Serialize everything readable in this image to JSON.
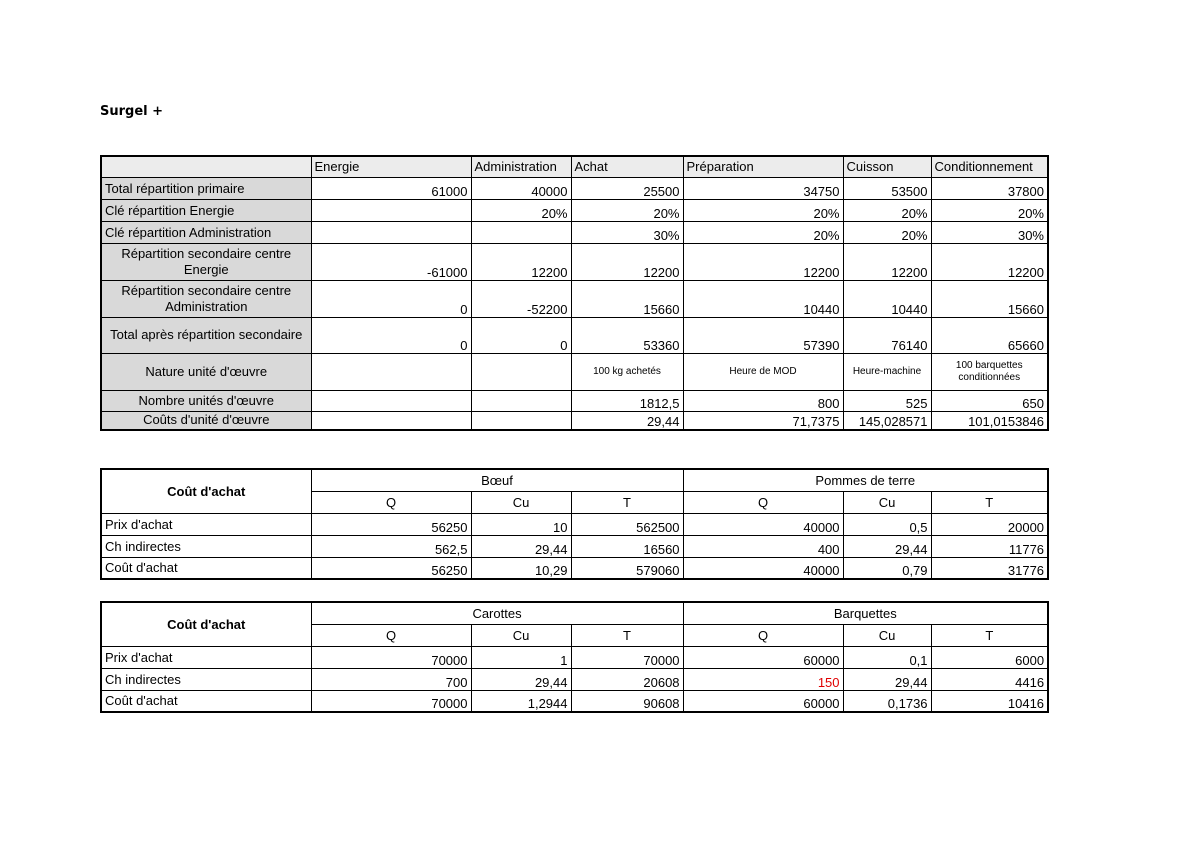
{
  "title": "Surgel +",
  "t1": {
    "headers": [
      "",
      "Energie",
      "Administration",
      "Achat",
      "Préparation",
      "Cuisson",
      "Conditionnement"
    ],
    "rows": [
      {
        "label": "Total répartition primaire",
        "values": [
          "61000",
          "40000",
          "25500",
          "34750",
          "53500",
          "37800"
        ]
      },
      {
        "label": "Clé répartition Energie",
        "values": [
          "",
          "20%",
          "20%",
          "20%",
          "20%",
          "20%"
        ]
      },
      {
        "label": "Clé répartition Administration",
        "values": [
          "",
          "",
          "30%",
          "20%",
          "20%",
          "30%"
        ]
      },
      {
        "label": "Répartition secondaire centre Energie",
        "values": [
          "-61000",
          "12200",
          "12200",
          "12200",
          "12200",
          "12200"
        ]
      },
      {
        "label": "Répartition secondaire centre Administration",
        "values": [
          "0",
          "-52200",
          "15660",
          "10440",
          "10440",
          "15660"
        ]
      },
      {
        "label": "Total après répartition secondaire",
        "values": [
          "0",
          "0",
          "53360",
          "57390",
          "76140",
          "65660"
        ]
      },
      {
        "label": "Nature unité d'œuvre",
        "values": [
          "",
          "",
          "100 kg achetés",
          "Heure de MOD",
          "Heure-machine",
          "100 barquettes conditionnées"
        ]
      },
      {
        "label": "Nombre unités d'œuvre",
        "values": [
          "",
          "",
          "1812,5",
          "800",
          "525",
          "650"
        ]
      },
      {
        "label": "Coûts d'unité d'œuvre",
        "values": [
          "",
          "",
          "29,44",
          "71,7375",
          "145,028571",
          "101,0153846"
        ]
      }
    ]
  },
  "t2": {
    "corner": "Coût d'achat",
    "groups": [
      "Bœuf",
      "Pommes de terre"
    ],
    "sub": [
      "Q",
      "Cu",
      "T",
      "Q",
      "Cu",
      "T"
    ],
    "rows": [
      {
        "label": "Prix d'achat",
        "values": [
          "56250",
          "10",
          "562500",
          "40000",
          "0,5",
          "20000"
        ]
      },
      {
        "label": "Ch indirectes",
        "values": [
          "562,5",
          "29,44",
          "16560",
          "400",
          "29,44",
          "11776"
        ]
      },
      {
        "label": "Coût d'achat",
        "values": [
          "56250",
          "10,29",
          "579060",
          "40000",
          "0,79",
          "31776"
        ]
      }
    ]
  },
  "t3": {
    "corner": "Coût d'achat",
    "groups": [
      "Carottes",
      "Barquettes"
    ],
    "sub": [
      "Q",
      "Cu",
      "T",
      "Q",
      "Cu",
      "T"
    ],
    "rows": [
      {
        "label": "Prix d'achat",
        "values": [
          "70000",
          "1",
          "70000",
          "60000",
          "0,1",
          "6000"
        ]
      },
      {
        "label": "Ch indirectes",
        "values": [
          "700",
          "29,44",
          "20608",
          "150",
          "29,44",
          "4416"
        ]
      },
      {
        "label": "Coût d'achat",
        "values": [
          "70000",
          "1,2944",
          "90608",
          "60000",
          "0,1736",
          "10416"
        ]
      }
    ]
  },
  "highlight_color": "#e00000"
}
